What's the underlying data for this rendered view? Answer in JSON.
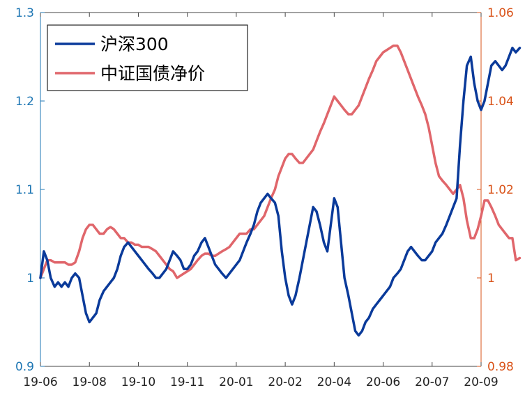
{
  "chart_data": {
    "type": "line",
    "title": "",
    "xlabel": "",
    "ylabel_left": "",
    "ylabel_right": "",
    "grid": false,
    "legend_position": "top-left",
    "x_ticks": [
      "19-06",
      "19-08",
      "19-10",
      "19-11",
      "20-01",
      "20-02",
      "20-04",
      "20-06",
      "20-07",
      "20-09"
    ],
    "y_left": {
      "lim": [
        0.9,
        1.3
      ],
      "ticks": [
        "0.9",
        "1",
        "1.1",
        "1.2",
        "1.3"
      ],
      "color": "#1f77b4"
    },
    "y_right": {
      "lim": [
        0.98,
        1.06
      ],
      "ticks": [
        "0.98",
        "1",
        "1.02",
        "1.04",
        "1.06"
      ],
      "color": "#d95319"
    },
    "series": [
      {
        "name": "沪深300",
        "axis": "left",
        "color": "#0a3a9a",
        "points": [
          [
            0.0,
            1.0
          ],
          [
            0.07,
            1.03
          ],
          [
            0.14,
            1.02
          ],
          [
            0.21,
            1.0
          ],
          [
            0.29,
            0.99
          ],
          [
            0.36,
            0.995
          ],
          [
            0.43,
            0.99
          ],
          [
            0.5,
            0.995
          ],
          [
            0.57,
            0.99
          ],
          [
            0.64,
            1.0
          ],
          [
            0.71,
            1.005
          ],
          [
            0.79,
            1.0
          ],
          [
            0.86,
            0.98
          ],
          [
            0.93,
            0.96
          ],
          [
            1.0,
            0.95
          ],
          [
            1.07,
            0.955
          ],
          [
            1.14,
            0.96
          ],
          [
            1.21,
            0.975
          ],
          [
            1.29,
            0.985
          ],
          [
            1.36,
            0.99
          ],
          [
            1.43,
            0.995
          ],
          [
            1.5,
            1.0
          ],
          [
            1.57,
            1.01
          ],
          [
            1.64,
            1.025
          ],
          [
            1.71,
            1.035
          ],
          [
            1.79,
            1.04
          ],
          [
            1.86,
            1.035
          ],
          [
            1.93,
            1.03
          ],
          [
            2.0,
            1.025
          ],
          [
            2.07,
            1.02
          ],
          [
            2.14,
            1.015
          ],
          [
            2.21,
            1.01
          ],
          [
            2.29,
            1.005
          ],
          [
            2.36,
            1.0
          ],
          [
            2.43,
            1.0
          ],
          [
            2.5,
            1.005
          ],
          [
            2.57,
            1.01
          ],
          [
            2.64,
            1.02
          ],
          [
            2.71,
            1.03
          ],
          [
            2.79,
            1.025
          ],
          [
            2.86,
            1.02
          ],
          [
            2.93,
            1.01
          ],
          [
            3.0,
            1.01
          ],
          [
            3.07,
            1.015
          ],
          [
            3.14,
            1.025
          ],
          [
            3.21,
            1.03
          ],
          [
            3.29,
            1.04
          ],
          [
            3.36,
            1.045
          ],
          [
            3.43,
            1.035
          ],
          [
            3.5,
            1.025
          ],
          [
            3.57,
            1.015
          ],
          [
            3.64,
            1.01
          ],
          [
            3.71,
            1.005
          ],
          [
            3.79,
            1.0
          ],
          [
            3.86,
            1.005
          ],
          [
            3.93,
            1.01
          ],
          [
            4.0,
            1.015
          ],
          [
            4.07,
            1.02
          ],
          [
            4.14,
            1.03
          ],
          [
            4.21,
            1.04
          ],
          [
            4.29,
            1.05
          ],
          [
            4.36,
            1.06
          ],
          [
            4.43,
            1.075
          ],
          [
            4.5,
            1.085
          ],
          [
            4.57,
            1.09
          ],
          [
            4.64,
            1.095
          ],
          [
            4.71,
            1.09
          ],
          [
            4.79,
            1.085
          ],
          [
            4.86,
            1.07
          ],
          [
            4.93,
            1.03
          ],
          [
            5.0,
            1.0
          ],
          [
            5.07,
            0.98
          ],
          [
            5.14,
            0.97
          ],
          [
            5.21,
            0.98
          ],
          [
            5.29,
            1.0
          ],
          [
            5.36,
            1.02
          ],
          [
            5.43,
            1.04
          ],
          [
            5.5,
            1.06
          ],
          [
            5.57,
            1.08
          ],
          [
            5.64,
            1.075
          ],
          [
            5.71,
            1.06
          ],
          [
            5.79,
            1.04
          ],
          [
            5.86,
            1.03
          ],
          [
            5.93,
            1.06
          ],
          [
            6.0,
            1.09
          ],
          [
            6.07,
            1.08
          ],
          [
            6.14,
            1.04
          ],
          [
            6.21,
            1.0
          ],
          [
            6.29,
            0.98
          ],
          [
            6.36,
            0.96
          ],
          [
            6.43,
            0.94
          ],
          [
            6.5,
            0.935
          ],
          [
            6.57,
            0.94
          ],
          [
            6.64,
            0.95
          ],
          [
            6.71,
            0.955
          ],
          [
            6.79,
            0.965
          ],
          [
            6.86,
            0.97
          ],
          [
            6.93,
            0.975
          ],
          [
            7.0,
            0.98
          ],
          [
            7.07,
            0.985
          ],
          [
            7.14,
            0.99
          ],
          [
            7.21,
            1.0
          ],
          [
            7.29,
            1.005
          ],
          [
            7.36,
            1.01
          ],
          [
            7.43,
            1.02
          ],
          [
            7.5,
            1.03
          ],
          [
            7.57,
            1.035
          ],
          [
            7.64,
            1.03
          ],
          [
            7.71,
            1.025
          ],
          [
            7.79,
            1.02
          ],
          [
            7.86,
            1.02
          ],
          [
            7.93,
            1.025
          ],
          [
            8.0,
            1.03
          ],
          [
            8.07,
            1.04
          ],
          [
            8.14,
            1.045
          ],
          [
            8.21,
            1.05
          ],
          [
            8.29,
            1.06
          ],
          [
            8.36,
            1.07
          ],
          [
            8.43,
            1.08
          ],
          [
            8.5,
            1.09
          ],
          [
            8.57,
            1.15
          ],
          [
            8.64,
            1.2
          ],
          [
            8.71,
            1.24
          ],
          [
            8.79,
            1.25
          ],
          [
            8.86,
            1.22
          ],
          [
            8.93,
            1.2
          ],
          [
            9.0,
            1.19
          ],
          [
            9.07,
            1.2
          ],
          [
            9.14,
            1.22
          ],
          [
            9.21,
            1.24
          ],
          [
            9.29,
            1.245
          ],
          [
            9.36,
            1.24
          ],
          [
            9.43,
            1.235
          ],
          [
            9.5,
            1.24
          ],
          [
            9.57,
            1.25
          ],
          [
            9.64,
            1.26
          ],
          [
            9.71,
            1.255
          ],
          [
            9.79,
            1.26
          ]
        ]
      },
      {
        "name": "中证国债净价",
        "axis": "right",
        "color": "#e0666b",
        "points": [
          [
            0.0,
            1.0
          ],
          [
            0.07,
            1.002
          ],
          [
            0.14,
            1.004
          ],
          [
            0.21,
            1.004
          ],
          [
            0.29,
            1.0035
          ],
          [
            0.36,
            1.0035
          ],
          [
            0.43,
            1.0035
          ],
          [
            0.5,
            1.0035
          ],
          [
            0.57,
            1.003
          ],
          [
            0.64,
            1.003
          ],
          [
            0.71,
            1.0035
          ],
          [
            0.79,
            1.006
          ],
          [
            0.86,
            1.009
          ],
          [
            0.93,
            1.011
          ],
          [
            1.0,
            1.012
          ],
          [
            1.07,
            1.012
          ],
          [
            1.14,
            1.011
          ],
          [
            1.21,
            1.01
          ],
          [
            1.29,
            1.01
          ],
          [
            1.36,
            1.011
          ],
          [
            1.43,
            1.0115
          ],
          [
            1.5,
            1.011
          ],
          [
            1.57,
            1.01
          ],
          [
            1.64,
            1.009
          ],
          [
            1.71,
            1.009
          ],
          [
            1.79,
            1.008
          ],
          [
            1.86,
            1.008
          ],
          [
            1.93,
            1.0075
          ],
          [
            2.0,
            1.0075
          ],
          [
            2.07,
            1.007
          ],
          [
            2.14,
            1.007
          ],
          [
            2.21,
            1.007
          ],
          [
            2.29,
            1.0065
          ],
          [
            2.36,
            1.006
          ],
          [
            2.43,
            1.005
          ],
          [
            2.5,
            1.004
          ],
          [
            2.57,
            1.003
          ],
          [
            2.64,
            1.002
          ],
          [
            2.71,
            1.0015
          ],
          [
            2.79,
            1.0
          ],
          [
            2.86,
            1.0005
          ],
          [
            2.93,
            1.001
          ],
          [
            3.0,
            1.0015
          ],
          [
            3.07,
            1.002
          ],
          [
            3.14,
            1.003
          ],
          [
            3.21,
            1.004
          ],
          [
            3.29,
            1.005
          ],
          [
            3.36,
            1.0055
          ],
          [
            3.43,
            1.0055
          ],
          [
            3.5,
            1.005
          ],
          [
            3.57,
            1.005
          ],
          [
            3.64,
            1.0055
          ],
          [
            3.71,
            1.006
          ],
          [
            3.79,
            1.0065
          ],
          [
            3.86,
            1.007
          ],
          [
            3.93,
            1.008
          ],
          [
            4.0,
            1.009
          ],
          [
            4.07,
            1.01
          ],
          [
            4.14,
            1.01
          ],
          [
            4.21,
            1.01
          ],
          [
            4.29,
            1.011
          ],
          [
            4.36,
            1.011
          ],
          [
            4.43,
            1.012
          ],
          [
            4.5,
            1.013
          ],
          [
            4.57,
            1.014
          ],
          [
            4.64,
            1.016
          ],
          [
            4.71,
            1.018
          ],
          [
            4.79,
            1.02
          ],
          [
            4.86,
            1.023
          ],
          [
            4.93,
            1.025
          ],
          [
            5.0,
            1.027
          ],
          [
            5.07,
            1.028
          ],
          [
            5.14,
            1.028
          ],
          [
            5.21,
            1.027
          ],
          [
            5.29,
            1.026
          ],
          [
            5.36,
            1.026
          ],
          [
            5.43,
            1.027
          ],
          [
            5.5,
            1.028
          ],
          [
            5.57,
            1.029
          ],
          [
            5.64,
            1.031
          ],
          [
            5.71,
            1.033
          ],
          [
            5.79,
            1.035
          ],
          [
            5.86,
            1.037
          ],
          [
            5.93,
            1.039
          ],
          [
            6.0,
            1.041
          ],
          [
            6.07,
            1.04
          ],
          [
            6.14,
            1.039
          ],
          [
            6.21,
            1.038
          ],
          [
            6.29,
            1.037
          ],
          [
            6.36,
            1.037
          ],
          [
            6.43,
            1.038
          ],
          [
            6.5,
            1.039
          ],
          [
            6.57,
            1.041
          ],
          [
            6.64,
            1.043
          ],
          [
            6.71,
            1.045
          ],
          [
            6.79,
            1.047
          ],
          [
            6.86,
            1.049
          ],
          [
            6.93,
            1.05
          ],
          [
            7.0,
            1.051
          ],
          [
            7.07,
            1.0515
          ],
          [
            7.14,
            1.052
          ],
          [
            7.21,
            1.0525
          ],
          [
            7.29,
            1.0525
          ],
          [
            7.36,
            1.051
          ],
          [
            7.43,
            1.049
          ],
          [
            7.5,
            1.047
          ],
          [
            7.57,
            1.045
          ],
          [
            7.64,
            1.043
          ],
          [
            7.71,
            1.041
          ],
          [
            7.79,
            1.039
          ],
          [
            7.86,
            1.037
          ],
          [
            7.93,
            1.034
          ],
          [
            8.0,
            1.03
          ],
          [
            8.07,
            1.026
          ],
          [
            8.14,
            1.023
          ],
          [
            8.21,
            1.022
          ],
          [
            8.29,
            1.021
          ],
          [
            8.36,
            1.02
          ],
          [
            8.43,
            1.019
          ],
          [
            8.5,
            1.02
          ],
          [
            8.57,
            1.021
          ],
          [
            8.64,
            1.018
          ],
          [
            8.71,
            1.013
          ],
          [
            8.79,
            1.009
          ],
          [
            8.86,
            1.009
          ],
          [
            8.93,
            1.011
          ],
          [
            9.0,
            1.014
          ],
          [
            9.07,
            1.0175
          ],
          [
            9.14,
            1.0175
          ],
          [
            9.21,
            1.016
          ],
          [
            9.29,
            1.014
          ],
          [
            9.36,
            1.012
          ],
          [
            9.43,
            1.011
          ],
          [
            9.5,
            1.01
          ],
          [
            9.57,
            1.009
          ],
          [
            9.64,
            1.009
          ],
          [
            9.71,
            1.004
          ],
          [
            9.79,
            1.0045
          ]
        ]
      }
    ]
  }
}
